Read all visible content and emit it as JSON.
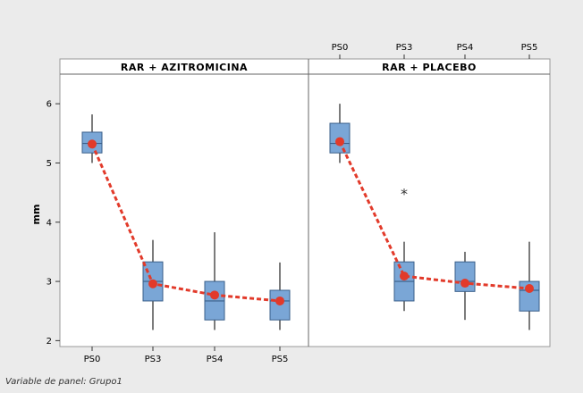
{
  "chart_data": {
    "type": "box",
    "ylabel": "mm",
    "ylim": [
      1.9,
      6.5
    ],
    "yticks": [
      2,
      3,
      4,
      5,
      6
    ],
    "categories": [
      "PS0",
      "PS3",
      "PS4",
      "PS5"
    ],
    "footnote": "Variable de panel: Grupo1",
    "colors": {
      "box": "#7aa6d6",
      "box_edge": "#3a5f8a",
      "mean": "#e23a2a"
    },
    "panels": [
      {
        "title": "RAR + AZITROMICINA",
        "boxes": [
          {
            "category": "PS0",
            "min": 5.0,
            "q1": 5.17,
            "median": 5.33,
            "q3": 5.52,
            "max": 5.82,
            "mean": 5.32,
            "outliers": []
          },
          {
            "category": "PS3",
            "min": 2.18,
            "q1": 2.67,
            "median": 3.0,
            "q3": 3.33,
            "max": 3.7,
            "mean": 2.96,
            "outliers": []
          },
          {
            "category": "PS4",
            "min": 2.18,
            "q1": 2.35,
            "median": 2.67,
            "q3": 3.0,
            "max": 3.83,
            "mean": 2.77,
            "outliers": []
          },
          {
            "category": "PS5",
            "min": 2.18,
            "q1": 2.35,
            "median": 2.67,
            "q3": 2.85,
            "max": 3.32,
            "mean": 2.67,
            "outliers": []
          }
        ]
      },
      {
        "title": "RAR + PLACEBO",
        "boxes": [
          {
            "category": "PS0",
            "min": 5.0,
            "q1": 5.17,
            "median": 5.33,
            "q3": 5.67,
            "max": 6.0,
            "mean": 5.36,
            "outliers": []
          },
          {
            "category": "PS3",
            "min": 2.5,
            "q1": 2.67,
            "median": 3.0,
            "q3": 3.33,
            "max": 3.67,
            "mean": 3.09,
            "outliers": [
              4.5
            ]
          },
          {
            "category": "PS4",
            "min": 2.35,
            "q1": 2.83,
            "median": 3.0,
            "q3": 3.33,
            "max": 3.5,
            "mean": 2.97,
            "outliers": []
          },
          {
            "category": "PS5",
            "min": 2.18,
            "q1": 2.5,
            "median": 2.85,
            "q3": 3.0,
            "max": 3.67,
            "mean": 2.88,
            "outliers": []
          }
        ]
      }
    ]
  }
}
